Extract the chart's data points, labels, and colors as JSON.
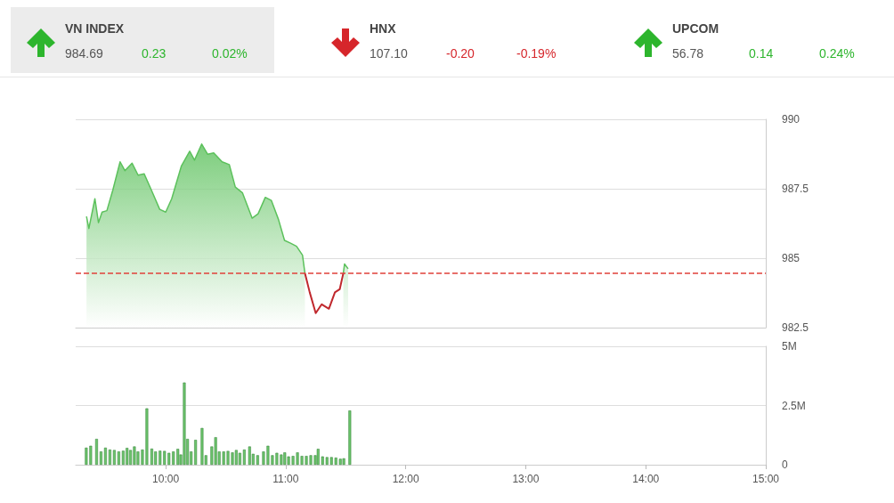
{
  "chart_data": [
    {
      "type": "other",
      "categories": [
        "VN INDEX",
        "HNX",
        "UPCOM"
      ],
      "series": [
        {
          "color": "#555555",
          "values": [
            984.69,
            107.1,
            56.78
          ],
          "value_labels": [
            "984.69",
            "107.10",
            "56.78"
          ]
        },
        {
          "colors": [
            "#2db52d",
            "#d6262b",
            "#2db52d"
          ],
          "values": [
            0.23,
            -0.2,
            0.14
          ],
          "value_labels": [
            "0.23",
            "-0.20",
            "0.14"
          ]
        },
        {
          "colors": [
            "#2db52d",
            "#d6262b",
            "#2db52d"
          ],
          "values": [
            0.02,
            -0.19,
            0.24
          ],
          "value_labels": [
            "0.02%",
            "-0.19%",
            "0.24%"
          ]
        }
      ]
    },
    {
      "type": "area",
      "xlim": [
        9.25,
        15
      ],
      "ylim": [
        982.5,
        990
      ],
      "yticks": [
        982.5,
        {
          "value": 985,
          "label": "985"
        },
        987.5,
        990
      ],
      "grid": "y",
      "tick_labels": "y",
      "line_style": "solid",
      "marker": "none",
      "series": [
        {
          "color": "#5cc15c",
          "x": [
            9.34,
            9.36,
            9.41,
            9.44,
            9.47,
            9.51,
            9.56,
            9.62,
            9.66,
            9.72,
            9.77,
            9.82,
            9.88,
            9.95,
            10.0,
            10.05,
            10.13,
            10.2,
            10.24,
            10.3,
            10.35,
            10.4,
            10.47,
            10.53,
            10.58,
            10.64,
            10.72,
            10.77,
            10.83,
            10.88,
            10.94,
            10.99,
            11.04,
            11.09,
            11.14,
            11.16,
            11.2,
            11.25,
            11.3,
            11.36,
            11.41,
            11.45,
            11.48,
            11.49,
            11.52
          ],
          "values": [
            986.5,
            986.07,
            987.14,
            986.28,
            986.66,
            986.71,
            987.46,
            988.47,
            988.15,
            988.42,
            987.99,
            988.04,
            987.46,
            986.76,
            986.66,
            987.14,
            988.31,
            988.85,
            988.53,
            989.11,
            988.74,
            988.79,
            988.47,
            988.37,
            987.56,
            987.35,
            986.44,
            986.6,
            987.19,
            987.08,
            986.39,
            985.64,
            985.54,
            985.43,
            985.11,
            984.46,
            null,
            null,
            null,
            null,
            null,
            null,
            984.46,
            984.79,
            984.62
          ]
        },
        {
          "type": "line",
          "color": "#c0282d",
          "x": [
            11.16,
            11.2,
            11.25,
            11.3,
            11.36,
            11.41,
            11.45,
            11.48
          ],
          "values": [
            984.46,
            983.77,
            983.02,
            983.34,
            983.18,
            983.77,
            983.88,
            984.46
          ]
        }
      ],
      "ref_lines": [
        {
          "axis": "y",
          "value": 984.46,
          "color": "#e0403a",
          "line_style": "dashed"
        }
      ]
    },
    {
      "type": "bar",
      "color": "#6cc46c",
      "xlim": [
        9.25,
        15
      ],
      "xticks": [
        {
          "value": 10,
          "label": "10:00"
        },
        {
          "value": 11,
          "label": "11:00"
        },
        {
          "value": 12,
          "label": "12:00"
        },
        {
          "value": 13,
          "label": "13:00"
        },
        {
          "value": 14,
          "label": "14:00"
        },
        {
          "value": 15,
          "label": "15:00"
        }
      ],
      "ylim": [
        0,
        5
      ],
      "yticks": [
        0,
        {
          "value": 2.5,
          "label": "2.5M"
        },
        {
          "value": 5,
          "label": "5M"
        }
      ],
      "grid": "y",
      "x": [
        9.338,
        9.375,
        9.424,
        9.461,
        9.498,
        9.535,
        9.572,
        9.609,
        9.646,
        9.678,
        9.707,
        9.739,
        9.769,
        9.806,
        9.843,
        9.884,
        9.916,
        9.953,
        9.99,
        10.027,
        10.064,
        10.101,
        10.126,
        10.155,
        10.182,
        10.212,
        10.249,
        10.303,
        10.335,
        10.384,
        10.416,
        10.446,
        10.483,
        10.519,
        10.556,
        10.588,
        10.618,
        10.655,
        10.699,
        10.729,
        10.766,
        10.815,
        10.852,
        10.889,
        10.926,
        10.963,
        10.992,
        11.024,
        11.061,
        11.098,
        11.135,
        11.172,
        11.209,
        11.246,
        11.27,
        11.307,
        11.344,
        11.381,
        11.418,
        11.455,
        11.484,
        11.534
      ],
      "values": [
        0.72,
        0.8,
        1.09,
        0.56,
        0.72,
        0.64,
        0.62,
        0.56,
        0.59,
        0.71,
        0.62,
        0.77,
        0.56,
        0.64,
        2.38,
        0.68,
        0.56,
        0.59,
        0.58,
        0.5,
        0.56,
        0.67,
        0.43,
        3.47,
        1.09,
        0.56,
        1.05,
        1.55,
        0.4,
        0.77,
        1.16,
        0.56,
        0.56,
        0.58,
        0.52,
        0.62,
        0.5,
        0.64,
        0.77,
        0.46,
        0.4,
        0.56,
        0.8,
        0.4,
        0.5,
        0.43,
        0.52,
        0.35,
        0.37,
        0.52,
        0.37,
        0.37,
        0.4,
        0.4,
        0.67,
        0.35,
        0.32,
        0.32,
        0.3,
        0.25,
        0.27,
        2.29
      ]
    }
  ]
}
